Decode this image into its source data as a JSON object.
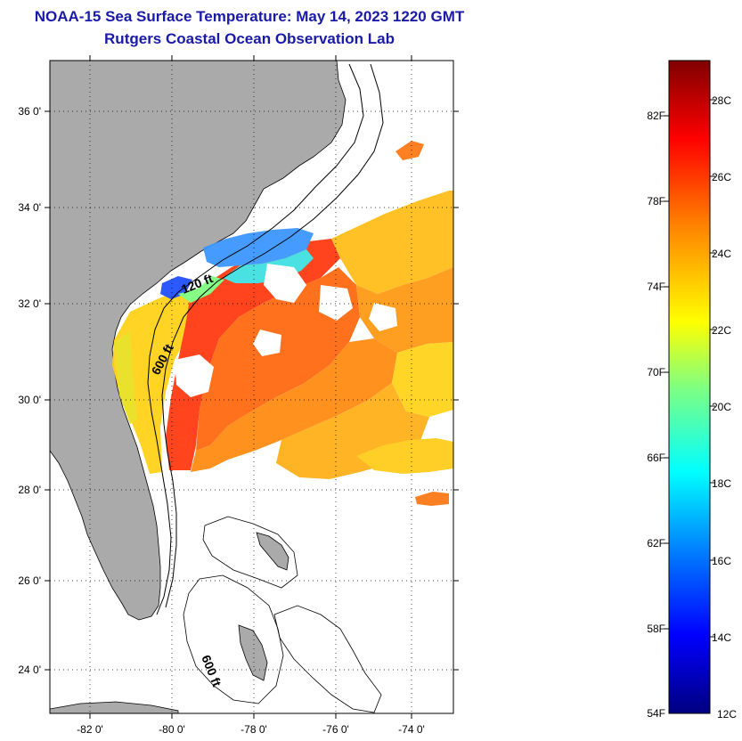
{
  "title": {
    "line1": "NOAA-15 Sea Surface Temperature:  May 14, 2023 1220 GMT",
    "line2": "Rutgers Coastal Ocean Observation Lab"
  },
  "map": {
    "lat_labels": [
      "36 0'",
      "34 0'",
      "32 0'",
      "30 0'",
      "28 0'",
      "26 0'",
      "24 0'"
    ],
    "lon_labels": [
      "-82 0'",
      "-80 0'",
      "-78 0'",
      "-76 0'",
      "-74 0'"
    ],
    "contours": [
      "120 ft",
      "600 ft",
      "600 ft"
    ],
    "colors": {
      "land": "#aaaaaa",
      "background": "#ffffff"
    }
  },
  "colorbar": {
    "fahrenheit_labels": [
      "82F",
      "78F",
      "74F",
      "70F",
      "66F",
      "62F",
      "58F",
      "54F"
    ],
    "celsius_labels": [
      "28C",
      "26C",
      "24C",
      "22C",
      "20C",
      "18C",
      "16C",
      "14C",
      "12C"
    ],
    "colors": [
      "#000080",
      "#0000ff",
      "#0080ff",
      "#00ffff",
      "#80ff80",
      "#ffff00",
      "#ff8000",
      "#ff0000",
      "#800000"
    ]
  }
}
